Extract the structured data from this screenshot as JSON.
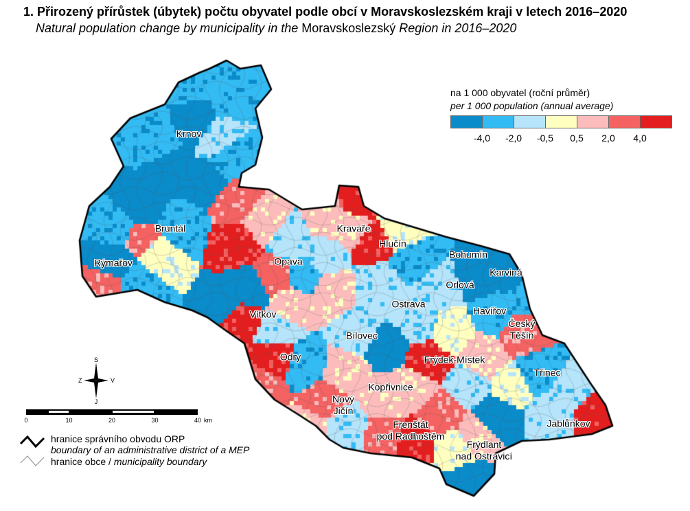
{
  "title": "1. Přirozený přírůstek (úbytek) počtu obyvatel podle obcí v Moravskoslezském kraji v letech 2016–2020",
  "subtitle": {
    "part1": "Natural population change by municipality in the ",
    "part2": "Moravskoslezský",
    "part3": " Region in 2016–2020"
  },
  "legend": {
    "title_cz": "na 1 000 obyvatel (roční průměr)",
    "title_en": "per 1 000 population (annual average)",
    "colors": [
      "#0a8bca",
      "#33bbf4",
      "#b5e4fb",
      "#ffffc0",
      "#fcbcbc",
      "#f46262",
      "#e41e1e"
    ],
    "breaks": [
      "-4,0",
      "-2,0",
      "-0,5",
      "0,5",
      "2,0",
      "4,0"
    ]
  },
  "compass": {
    "n": "S",
    "s": "J",
    "w": "Z",
    "e": "V"
  },
  "scale": {
    "labels": [
      "0",
      "10",
      "20",
      "30",
      "40"
    ],
    "unit": "km"
  },
  "boundary_legend": {
    "orp_cz": "hranice správního obvodu ORP",
    "orp_en": "boundary of an administrative district of a MEP",
    "mun_cz": "hranice obce / ",
    "mun_en": "municipality boundary"
  },
  "places": [
    "Krnov",
    "Bruntál",
    "Rýmařov",
    "Opava",
    "Kravaře",
    "Hlučín",
    "Bohumín",
    "Karviná",
    "Orlová",
    "Ostrava",
    "Havířov",
    "Český\nTěšín",
    "Vítkov",
    "Bílovec",
    "Odry",
    "Frýdek-Místek",
    "Třinec",
    "Kopřivnice",
    "Nový\nJičín",
    "Frenštát\npod Radhoštěm",
    "Frýdlant\nnad Ostravicí",
    "Jablůnkov"
  ]
}
